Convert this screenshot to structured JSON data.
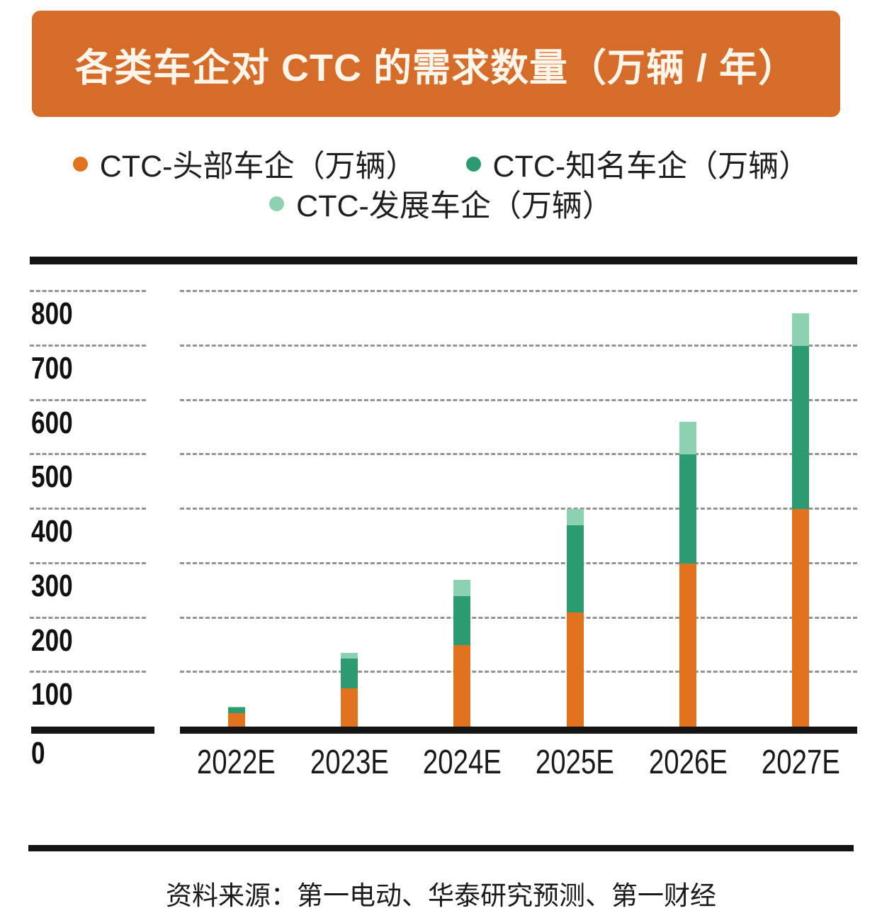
{
  "banner": {
    "title": "各类车企对 CTC 的需求数量（万辆 / 年）",
    "bg_color": "#d66c2a"
  },
  "chart_data": {
    "type": "bar",
    "stacked": true,
    "title": "各类车企对 CTC 的需求数量（万辆 / 年）",
    "categories": [
      "2022E",
      "2023E",
      "2024E",
      "2025E",
      "2026E",
      "2027E"
    ],
    "series": [
      {
        "name": "CTC-头部车企（万辆）",
        "color": "#e2731e",
        "values": [
          25,
          70,
          150,
          210,
          300,
          400
        ]
      },
      {
        "name": "CTC-知名车企（万辆）",
        "color": "#2d9b72",
        "values": [
          10,
          55,
          90,
          160,
          200,
          300
        ]
      },
      {
        "name": "CTC-发展车企（万辆）",
        "color": "#8cd1b0",
        "values": [
          2,
          10,
          30,
          30,
          60,
          60
        ]
      }
    ],
    "xlabel": "",
    "ylabel": "",
    "ylim": [
      0,
      800
    ],
    "yticks": [
      0,
      100,
      200,
      300,
      400,
      500,
      600,
      700,
      800
    ],
    "grid": "horizontal dashed",
    "legend_position": "top",
    "grid_color": "#949494",
    "axis_color": "#141414"
  },
  "source": {
    "text": "资料来源：第一电动、华泰研究预测、第一财经"
  }
}
